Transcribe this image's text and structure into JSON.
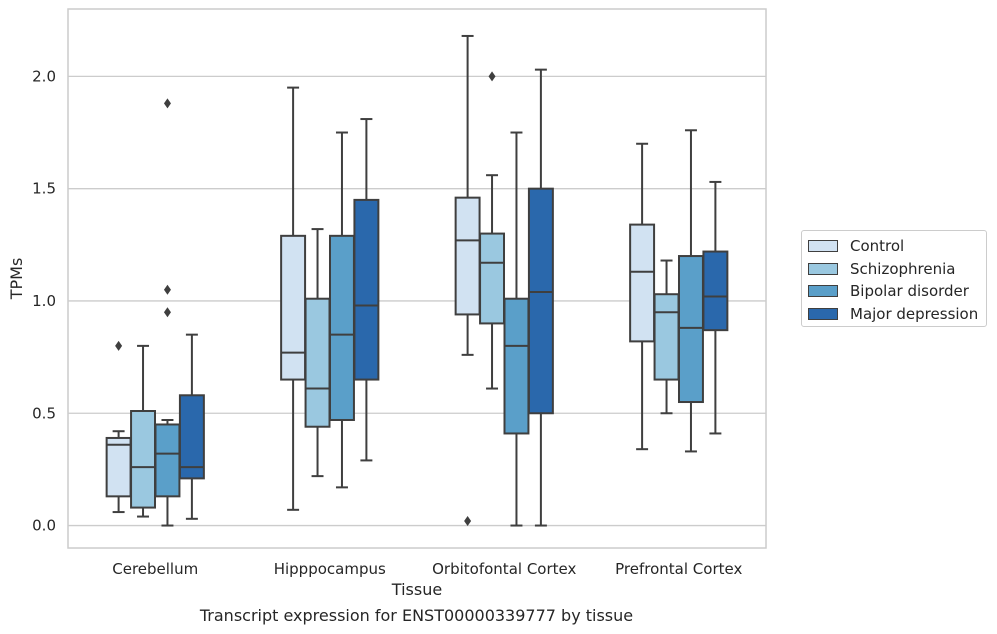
{
  "caption": "Transcript expression for ENST00000339777 by tissue",
  "chart_data": {
    "type": "box",
    "xlabel": "Tissue",
    "ylabel": "TPMs",
    "ylim": [
      -0.1,
      2.3
    ],
    "yticks": [
      "0.0",
      "0.5",
      "1.0",
      "1.5",
      "2.0"
    ],
    "ytick_values": [
      0.0,
      0.5,
      1.0,
      1.5,
      2.0
    ],
    "grid": "horizontal",
    "legend_position": "right",
    "categories": [
      "Cerebellum",
      "Hipppocampus",
      "Orbitofontal Cortex",
      "Prefrontal Cortex"
    ],
    "series": [
      {
        "name": "Control",
        "color": "#d1e2f2",
        "boxes": [
          {
            "whisker_low": 0.06,
            "q1": 0.13,
            "median": 0.36,
            "q3": 0.39,
            "whisker_high": 0.42,
            "outliers": [
              0.8
            ]
          },
          {
            "whisker_low": 0.07,
            "q1": 0.65,
            "median": 0.77,
            "q3": 1.29,
            "whisker_high": 1.95,
            "outliers": []
          },
          {
            "whisker_low": 0.76,
            "q1": 0.94,
            "median": 1.27,
            "q3": 1.46,
            "whisker_high": 2.18,
            "outliers": [
              0.02
            ]
          },
          {
            "whisker_low": 0.34,
            "q1": 0.82,
            "median": 1.13,
            "q3": 1.34,
            "whisker_high": 1.7,
            "outliers": []
          }
        ]
      },
      {
        "name": "Schizophrenia",
        "color": "#9ac8e0",
        "boxes": [
          {
            "whisker_low": 0.04,
            "q1": 0.08,
            "median": 0.26,
            "q3": 0.51,
            "whisker_high": 0.8,
            "outliers": []
          },
          {
            "whisker_low": 0.22,
            "q1": 0.44,
            "median": 0.61,
            "q3": 1.01,
            "whisker_high": 1.32,
            "outliers": []
          },
          {
            "whisker_low": 0.61,
            "q1": 0.9,
            "median": 1.17,
            "q3": 1.3,
            "whisker_high": 1.56,
            "outliers": [
              2.0
            ]
          },
          {
            "whisker_low": 0.5,
            "q1": 0.65,
            "median": 0.95,
            "q3": 1.03,
            "whisker_high": 1.18,
            "outliers": []
          }
        ]
      },
      {
        "name": "Bipolar disorder",
        "color": "#5a9fc9",
        "boxes": [
          {
            "whisker_low": 0.0,
            "q1": 0.13,
            "median": 0.32,
            "q3": 0.45,
            "whisker_high": 0.47,
            "outliers": [
              0.95,
              1.05,
              1.88
            ]
          },
          {
            "whisker_low": 0.17,
            "q1": 0.47,
            "median": 0.85,
            "q3": 1.29,
            "whisker_high": 1.75,
            "outliers": []
          },
          {
            "whisker_low": 0.0,
            "q1": 0.41,
            "median": 0.8,
            "q3": 1.01,
            "whisker_high": 1.75,
            "outliers": []
          },
          {
            "whisker_low": 0.33,
            "q1": 0.55,
            "median": 0.88,
            "q3": 1.2,
            "whisker_high": 1.76,
            "outliers": []
          }
        ]
      },
      {
        "name": "Major depression",
        "color": "#2a68ac",
        "boxes": [
          {
            "whisker_low": 0.03,
            "q1": 0.21,
            "median": 0.26,
            "q3": 0.58,
            "whisker_high": 0.85,
            "outliers": []
          },
          {
            "whisker_low": 0.29,
            "q1": 0.65,
            "median": 0.98,
            "q3": 1.45,
            "whisker_high": 1.81,
            "outliers": []
          },
          {
            "whisker_low": 0.0,
            "q1": 0.5,
            "median": 1.04,
            "q3": 1.5,
            "whisker_high": 2.03,
            "outliers": []
          },
          {
            "whisker_low": 0.41,
            "q1": 0.87,
            "median": 1.02,
            "q3": 1.22,
            "whisker_high": 1.53,
            "outliers": []
          }
        ]
      }
    ]
  }
}
